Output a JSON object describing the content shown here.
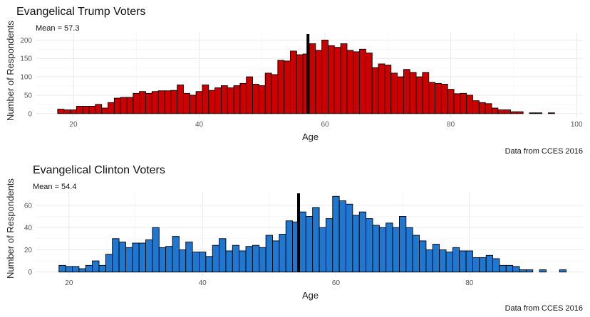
{
  "chart_data": [
    {
      "type": "bar",
      "title": "Evangelical Trump Voters",
      "subtitle": "Mean = 57.3",
      "caption": "Data from CCES 2016",
      "xlabel": "Age",
      "ylabel": "Number of Respondents",
      "mean": 57.3,
      "fill": "#cc0000",
      "mean_color": "#000000",
      "xlim": [
        14,
        101
      ],
      "ylim": [
        -12,
        220
      ],
      "x_ticks": [
        20,
        40,
        60,
        80,
        100
      ],
      "y_ticks": [
        0,
        50,
        100,
        150,
        200
      ],
      "grid": true,
      "x": [
        18,
        19,
        20,
        21,
        22,
        23,
        24,
        25,
        26,
        27,
        28,
        29,
        30,
        31,
        32,
        33,
        34,
        35,
        36,
        37,
        38,
        39,
        40,
        41,
        42,
        43,
        44,
        45,
        46,
        47,
        48,
        49,
        50,
        51,
        52,
        53,
        54,
        55,
        56,
        57,
        58,
        59,
        60,
        61,
        62,
        63,
        64,
        65,
        66,
        67,
        68,
        69,
        70,
        71,
        72,
        73,
        74,
        75,
        76,
        77,
        78,
        79,
        80,
        81,
        82,
        83,
        84,
        85,
        86,
        87,
        88,
        89,
        90,
        91,
        93,
        94,
        96
      ],
      "values": [
        12,
        10,
        10,
        20,
        20,
        20,
        25,
        15,
        30,
        42,
        44,
        44,
        55,
        60,
        55,
        60,
        62,
        62,
        63,
        78,
        55,
        50,
        60,
        78,
        63,
        70,
        76,
        70,
        76,
        82,
        100,
        80,
        76,
        110,
        106,
        145,
        143,
        170,
        160,
        162,
        190,
        172,
        200,
        185,
        180,
        190,
        172,
        168,
        175,
        165,
        125,
        135,
        132,
        110,
        100,
        120,
        112,
        100,
        112,
        85,
        82,
        80,
        66,
        54,
        55,
        50,
        35,
        30,
        27,
        15,
        10,
        10,
        5,
        5,
        2,
        2,
        2
      ]
    },
    {
      "type": "bar",
      "title": "Evangelical Clinton Voters",
      "subtitle": "Mean = 54.4",
      "caption": "Data from CCES 2016",
      "xlabel": "Age",
      "ylabel": "Number of Respondents",
      "mean": 54.4,
      "fill": "#1f77cf",
      "mean_color": "#000000",
      "xlim": [
        15,
        97
      ],
      "ylim": [
        -4,
        72
      ],
      "x_ticks": [
        20,
        40,
        60,
        80
      ],
      "y_ticks": [
        0,
        20,
        40,
        60
      ],
      "grid": true,
      "x": [
        19,
        20,
        21,
        22,
        23,
        24,
        25,
        26,
        27,
        28,
        29,
        30,
        31,
        32,
        33,
        34,
        35,
        36,
        37,
        38,
        39,
        40,
        41,
        42,
        43,
        44,
        45,
        46,
        47,
        48,
        49,
        50,
        51,
        52,
        53,
        54,
        55,
        56,
        57,
        58,
        59,
        60,
        61,
        62,
        63,
        64,
        65,
        66,
        67,
        68,
        69,
        70,
        71,
        72,
        73,
        74,
        75,
        76,
        77,
        78,
        79,
        80,
        81,
        82,
        83,
        84,
        85,
        86,
        87,
        88,
        89,
        91,
        94
      ],
      "values": [
        6,
        5,
        5,
        3,
        6,
        10,
        6,
        16,
        30,
        27,
        22,
        26,
        26,
        29,
        40,
        22,
        23,
        32,
        20,
        27,
        18,
        18,
        14,
        24,
        30,
        19,
        24,
        19,
        23,
        24,
        22,
        33,
        28,
        34,
        46,
        45,
        54,
        50,
        58,
        40,
        48,
        68,
        64,
        61,
        51,
        54,
        48,
        42,
        40,
        44,
        40,
        50,
        40,
        33,
        28,
        20,
        25,
        20,
        18,
        22,
        19,
        19,
        13,
        13,
        15,
        12,
        6,
        6,
        5,
        2,
        2,
        2,
        2
      ]
    }
  ]
}
